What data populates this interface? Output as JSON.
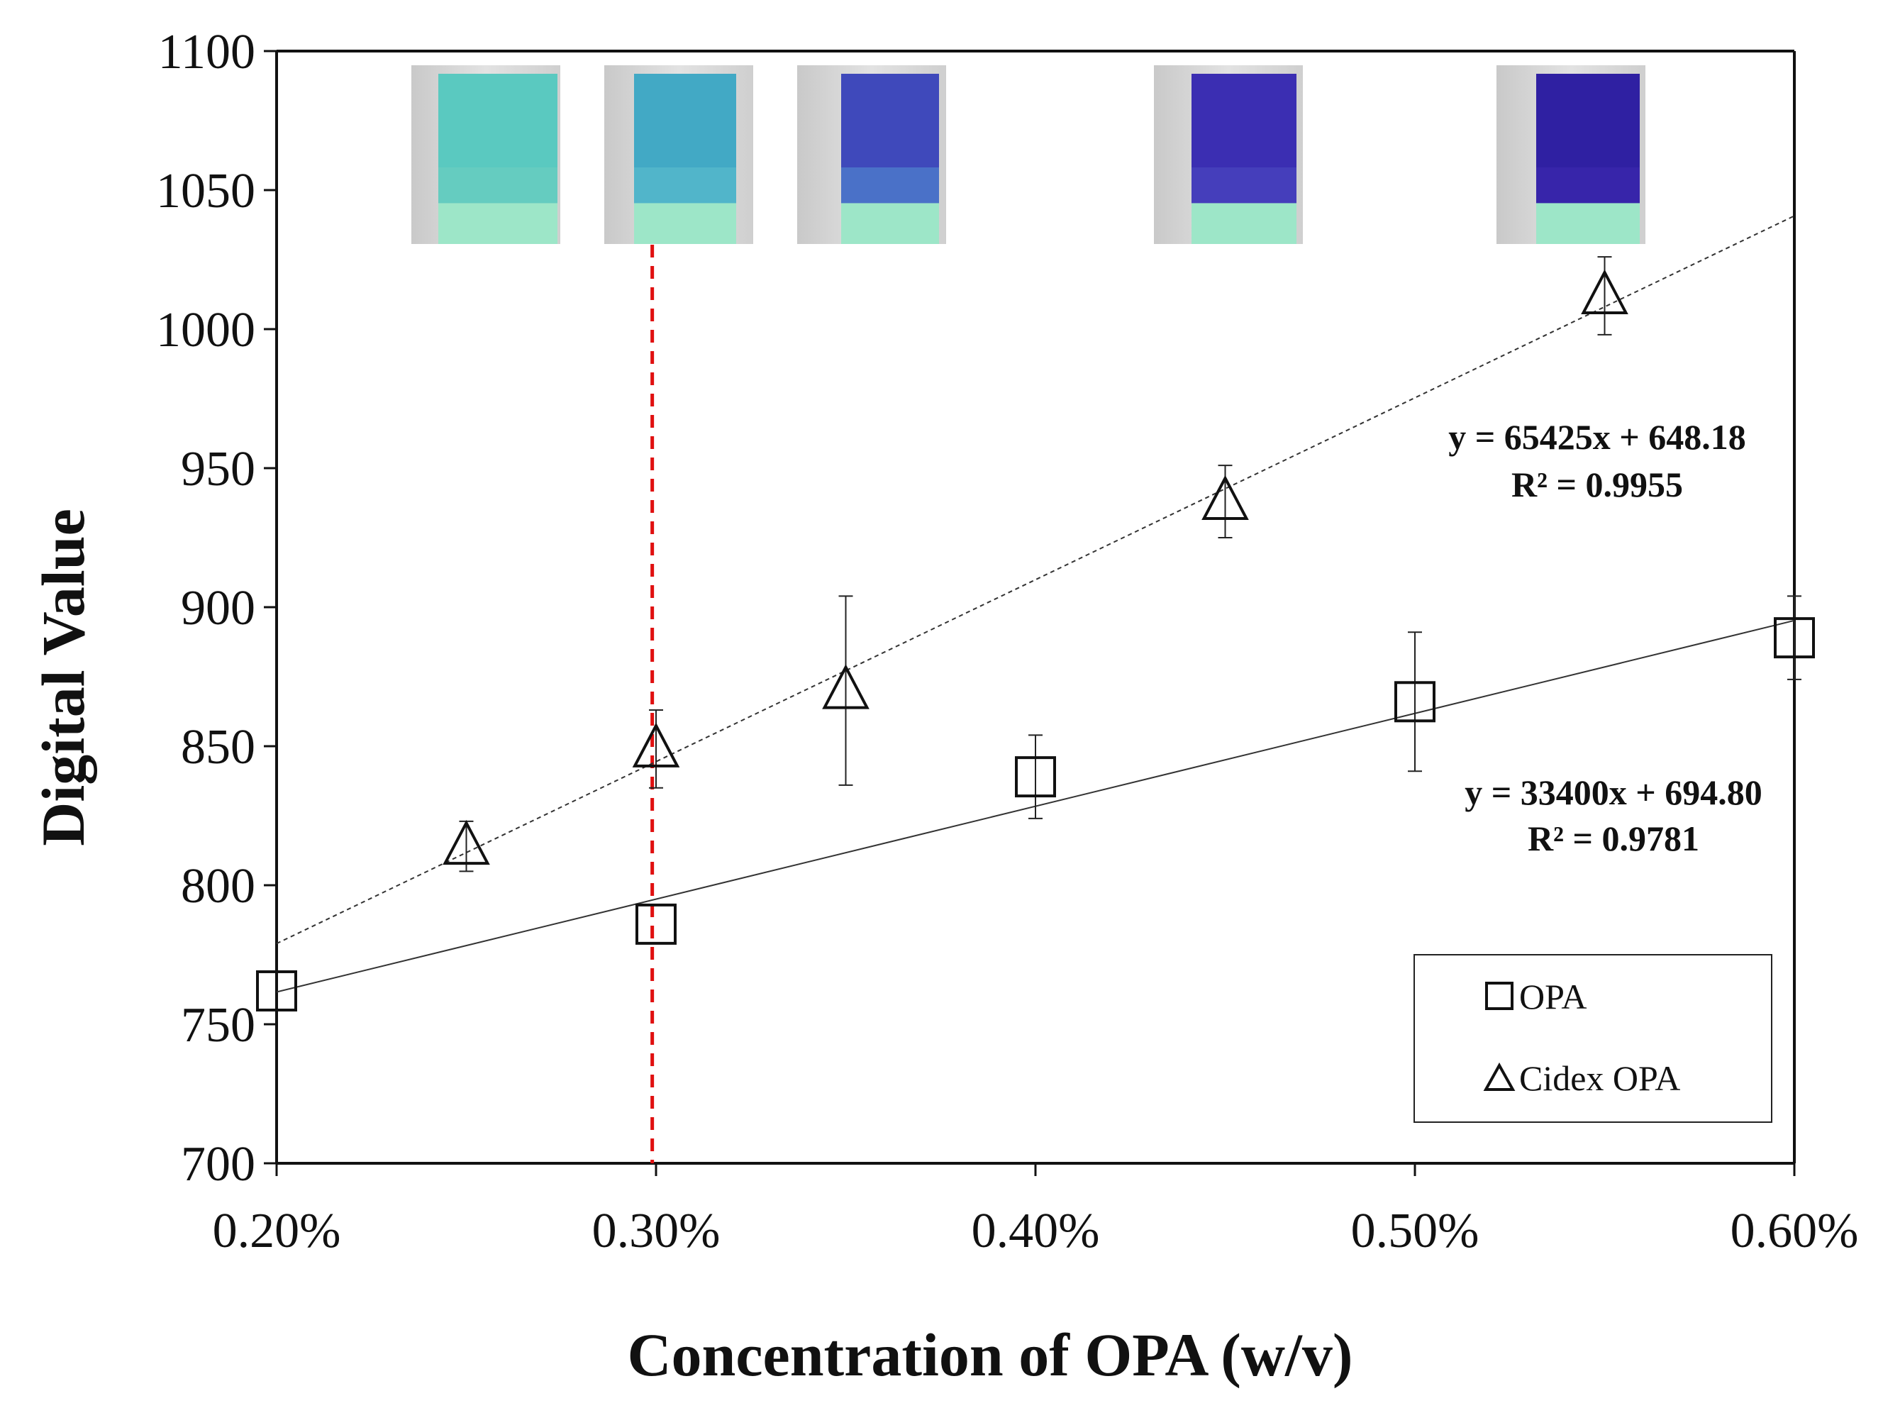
{
  "chart_data": {
    "type": "scatter",
    "title": "",
    "xlabel": "Concentration of OPA (w/v)",
    "ylabel": "Digital Value",
    "xlim": [
      0.2,
      0.6
    ],
    "ylim": [
      700,
      1100
    ],
    "x_ticks": [
      0.2,
      0.3,
      0.4,
      0.5,
      0.6
    ],
    "x_tick_labels": [
      "0.20%",
      "0.30%",
      "0.40%",
      "0.50%",
      "0.60%"
    ],
    "y_ticks": [
      700,
      750,
      800,
      850,
      900,
      950,
      1000,
      1050,
      1100
    ],
    "y_tick_labels": [
      "700",
      "750",
      "800",
      "850",
      "900",
      "950",
      "1000",
      "1050",
      "1100"
    ],
    "grid": false,
    "legend_position": "bottom-right",
    "series": [
      {
        "name": "OPA",
        "marker": "square",
        "trendline_style": "solid",
        "points": [
          {
            "x": 0.2,
            "y": 762,
            "err": 0
          },
          {
            "x": 0.3,
            "y": 786,
            "err": 0
          },
          {
            "x": 0.4,
            "y": 839,
            "err": 15
          },
          {
            "x": 0.5,
            "y": 866,
            "err": 25
          },
          {
            "x": 0.6,
            "y": 889,
            "err": 15
          }
        ],
        "trendline": {
          "slope": 33400,
          "intercept": 694.8,
          "scale": 0.01,
          "x_range": [
            0.2,
            0.6
          ]
        },
        "equation": "y = 33400x + 694.80",
        "r_squared": "R² = 0.9781"
      },
      {
        "name": "Cidex OPA",
        "marker": "triangle",
        "trendline_style": "dotted",
        "points": [
          {
            "x": 0.25,
            "y": 814,
            "err": 9
          },
          {
            "x": 0.3,
            "y": 849,
            "err": 14
          },
          {
            "x": 0.35,
            "y": 870,
            "err": 34
          },
          {
            "x": 0.45,
            "y": 938,
            "err": 13
          },
          {
            "x": 0.55,
            "y": 1012,
            "err": 14
          }
        ],
        "trendline": {
          "slope": 65425,
          "intercept": 648.18,
          "scale": 0.01,
          "x_range": [
            0.2,
            0.6
          ]
        },
        "equation": "y = 65425x + 648.18",
        "r_squared": "R² = 0.9955"
      }
    ],
    "reference_line": {
      "x": 0.299,
      "color": "#e01010",
      "style": "dashed"
    },
    "insets": [
      {
        "name": "strip-1",
        "top_color": "#5ecdc2",
        "mid_color": "#6fd0c2",
        "tint": "#4fbfba"
      },
      {
        "name": "strip-2",
        "top_color": "#3fa9c6",
        "mid_color": "#57bccc",
        "tint": "#4aaac4"
      },
      {
        "name": "strip-3",
        "top_color": "#3b3fb8",
        "mid_color": "#4e7fcc",
        "tint": "#4a66c4"
      },
      {
        "name": "strip-4",
        "top_color": "#3a2bb0",
        "mid_color": "#4a44c0",
        "tint": "#3f38b8"
      },
      {
        "name": "strip-5",
        "top_color": "#2e1fa0",
        "mid_color": "#3a28ad",
        "tint": "#3522a8"
      }
    ]
  }
}
